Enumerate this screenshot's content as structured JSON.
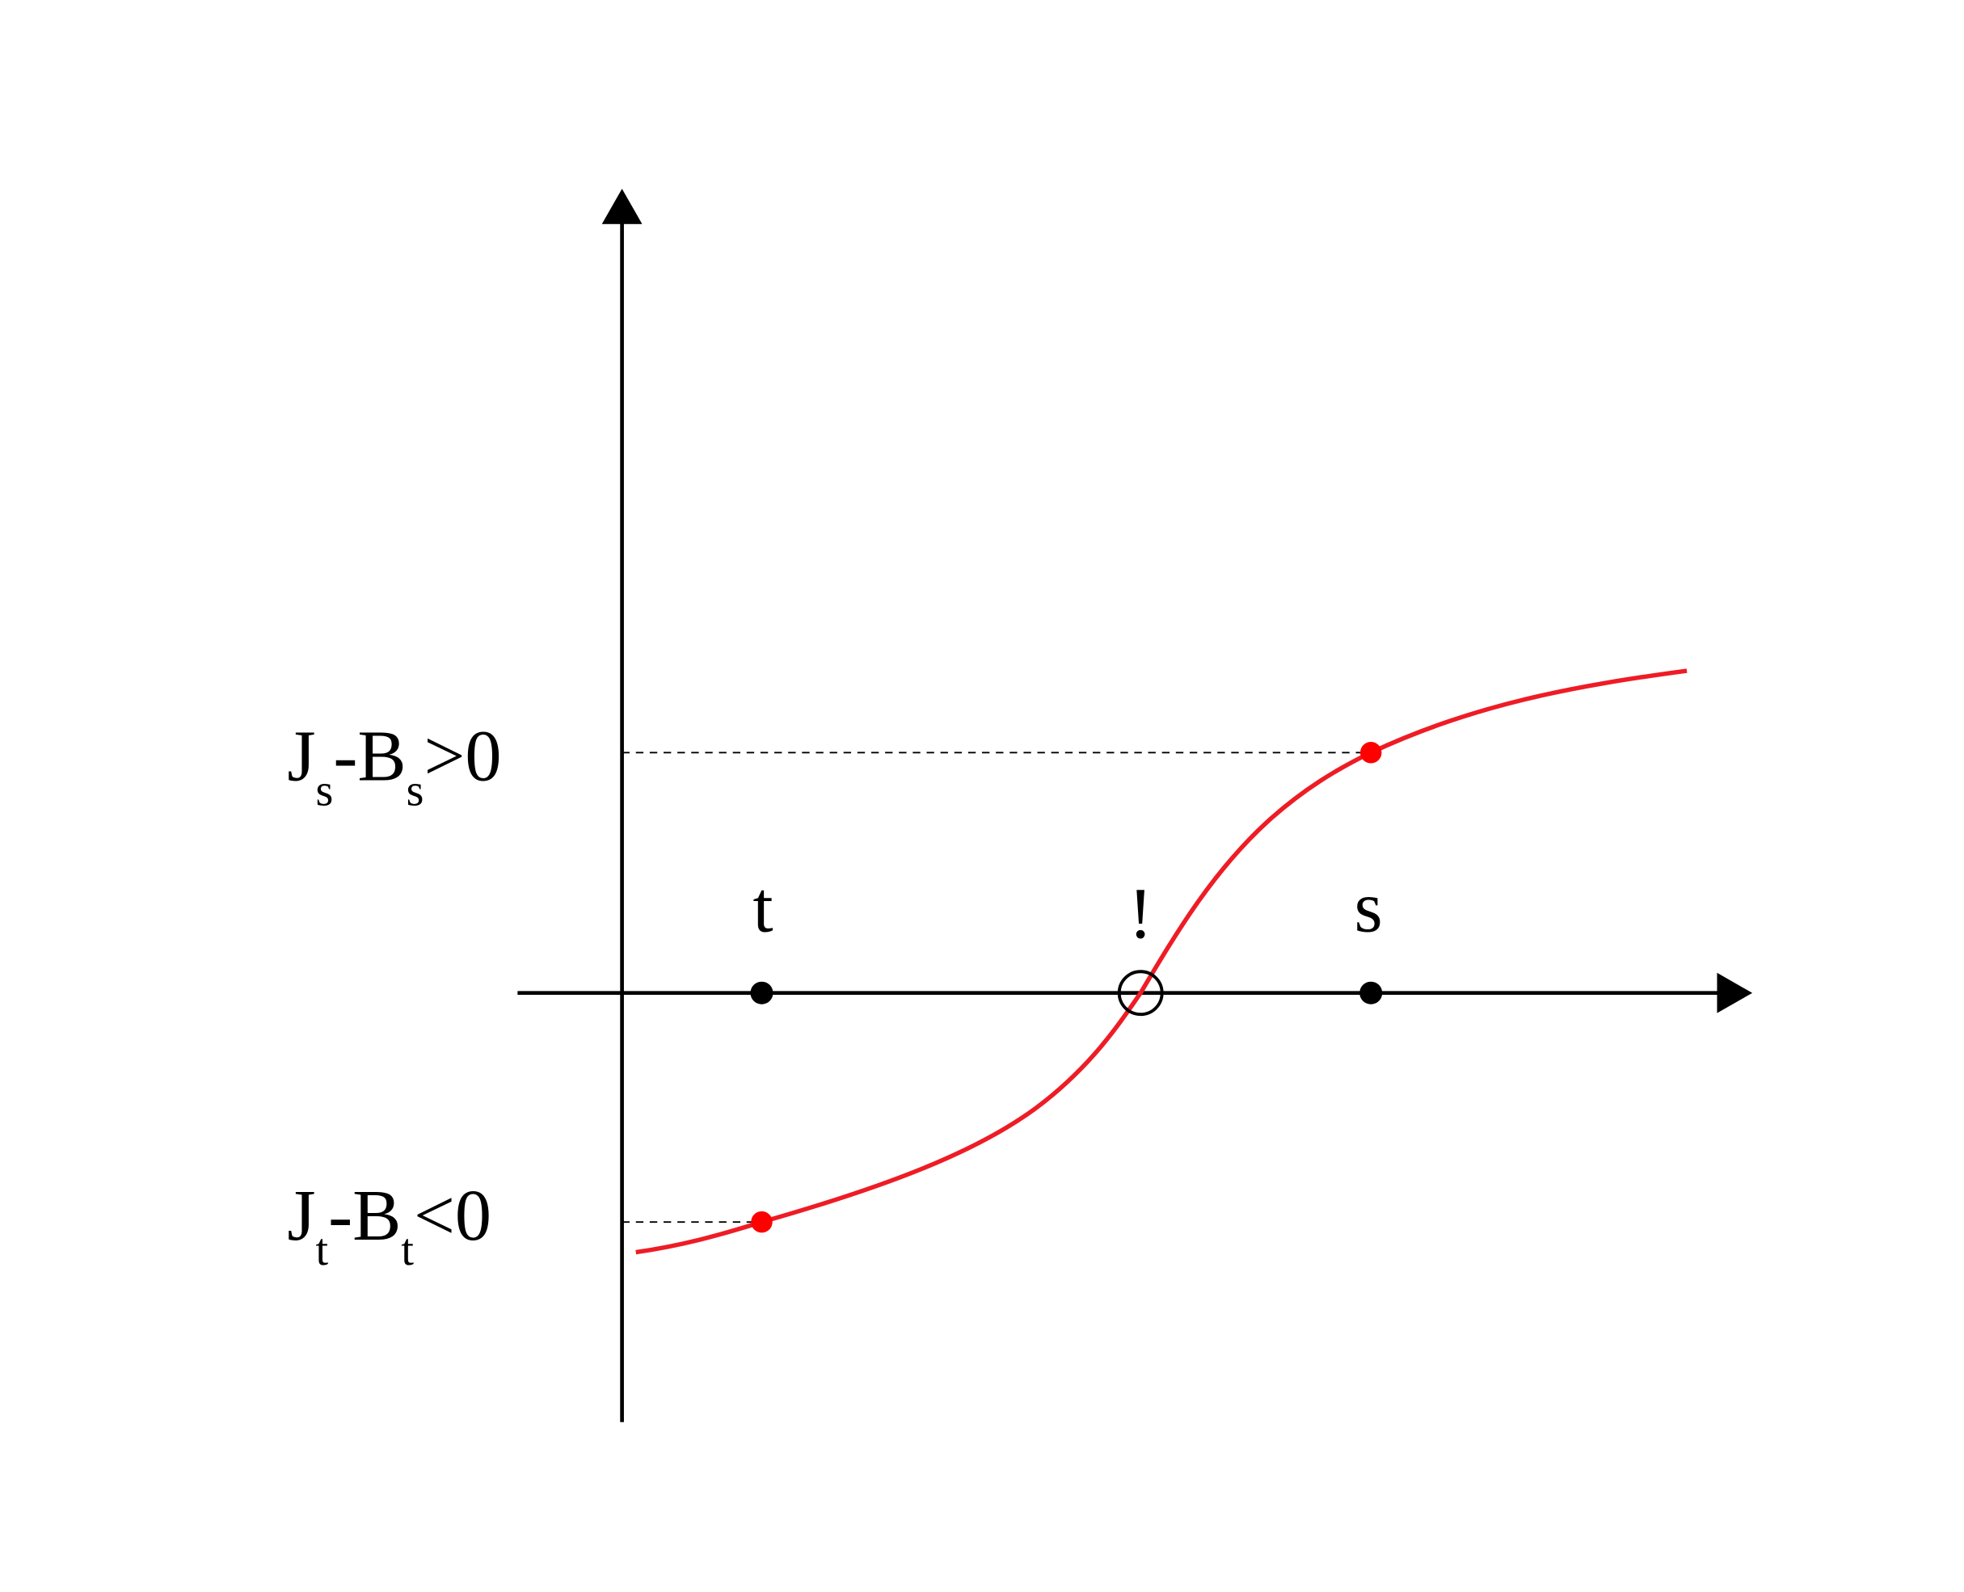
{
  "y_labels": [
    {
      "main": "J",
      "sub": "s",
      "mid": "-B",
      "sub2": "s",
      "rest": ">0"
    },
    {
      "main": "J",
      "sub": "t",
      "mid": "-B",
      "sub2": "t",
      "rest": "<0"
    }
  ],
  "points": [
    {
      "label": "t"
    },
    {
      "label": "!"
    },
    {
      "label": "s"
    }
  ]
}
